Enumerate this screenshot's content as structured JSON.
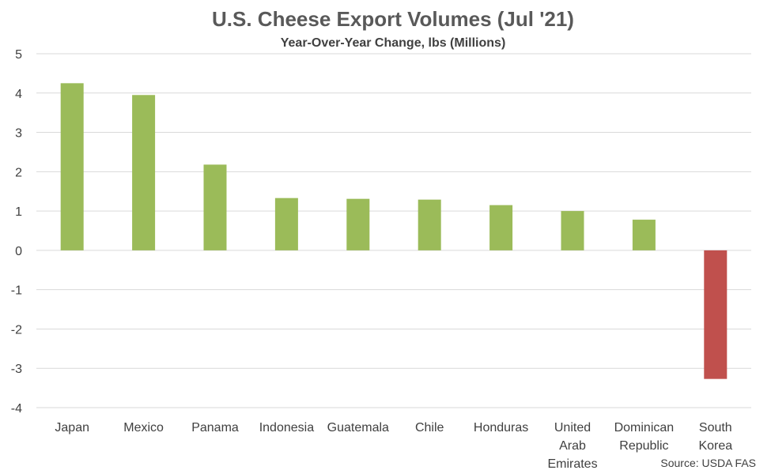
{
  "chart_data": {
    "type": "bar",
    "title": "U.S. Cheese Export Volumes (Jul '21)",
    "subtitle": "Year-Over-Year Change, lbs (Millions)",
    "categories": [
      "Japan",
      "Mexico",
      "Panama",
      "Indonesia",
      "Guatemala",
      "Chile",
      "Honduras",
      "United Arab Emirates",
      "Dominican Republic",
      "South Korea"
    ],
    "category_lines": [
      [
        "Japan"
      ],
      [
        "Mexico"
      ],
      [
        "Panama"
      ],
      [
        "Indonesia"
      ],
      [
        "Guatemala"
      ],
      [
        "Chile"
      ],
      [
        "Honduras"
      ],
      [
        "United",
        "Arab",
        "Emirates"
      ],
      [
        "Dominican",
        "Republic"
      ],
      [
        "South",
        "Korea"
      ]
    ],
    "values": [
      4.25,
      3.95,
      2.18,
      1.33,
      1.31,
      1.29,
      1.15,
      1.0,
      0.78,
      -3.27
    ],
    "ylim": [
      -4,
      5
    ],
    "yticks": [
      "5",
      "4",
      "3",
      "2",
      "1",
      "0",
      "-1",
      "-2",
      "-3",
      "-4"
    ],
    "grid": true,
    "legend": "none",
    "colors": {
      "positive": "#9bbb59",
      "negative": "#c0504d"
    },
    "source": "Source: USDA FAS"
  }
}
